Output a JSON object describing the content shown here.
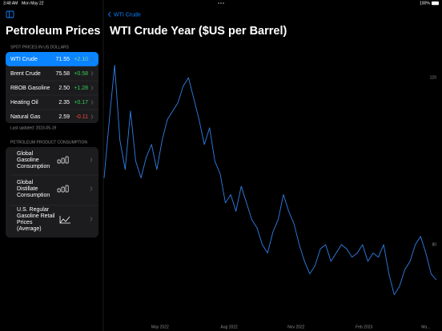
{
  "status_bar": {
    "time": "3:48 AM",
    "date": "Mon May 22",
    "battery": "100%"
  },
  "sidebar": {
    "title": "Petroleum Prices",
    "spot_header": "SPOT PRICES IN US DOLLARS",
    "spot_rows": [
      {
        "name": "WTI Crude",
        "price": "71.55",
        "change": "+2.10"
      },
      {
        "name": "Brent Crude",
        "price": "75.58",
        "change": "+0.58"
      },
      {
        "name": "RBOB Gasoline",
        "price": "2.50",
        "change": "+1.28"
      },
      {
        "name": "Heating Oil",
        "price": "2.35",
        "change": "+0.17"
      },
      {
        "name": "Natural Gas",
        "price": "2.59",
        "change": "-0.11"
      }
    ],
    "last_updated": "Last updated: 2023-05-19",
    "consumption_header": "PETROLEUM PRODUCT CONSUMPTION",
    "consumption_rows": [
      [
        "Global",
        "Gasoline",
        "Consumption"
      ],
      [
        "Global",
        "Distillate",
        "Consumption"
      ],
      [
        "U.S. Regular",
        "Gasoline Retail",
        "Prices",
        "(Average)"
      ]
    ]
  },
  "detail": {
    "back": "WTI Crude",
    "title": "WTI Crude Year ($US per Barrel)",
    "chart": {
      "type": "line",
      "color": "#2f80e8",
      "x": [
        0,
        1,
        2,
        3,
        4,
        5,
        6,
        7,
        8,
        9,
        10,
        11,
        12,
        13,
        14,
        15,
        16,
        17,
        18,
        19,
        20,
        21,
        22,
        23,
        24,
        25,
        26,
        27,
        28,
        29,
        30,
        31,
        32,
        33,
        34,
        35,
        36,
        37,
        38,
        39,
        40,
        41,
        42,
        43,
        44,
        45,
        46,
        47,
        48,
        49,
        50,
        51,
        52,
        53,
        54,
        55,
        56,
        57,
        58,
        59,
        60,
        61,
        62,
        63
      ],
      "values": [
        96,
        110,
        123,
        105,
        98,
        112,
        100,
        96,
        101,
        104,
        98,
        105,
        110,
        112,
        114,
        118,
        120,
        115,
        110,
        104,
        108,
        100,
        97,
        90,
        92,
        88,
        94,
        90,
        86,
        84,
        80,
        78,
        83,
        86,
        92,
        88,
        85,
        80,
        76,
        73,
        75,
        79,
        80,
        76,
        78,
        80,
        79,
        77,
        78,
        80,
        76,
        78,
        77,
        80,
        73,
        68,
        70,
        74,
        76,
        80,
        82,
        78,
        73,
        71.55
      ],
      "xlim": [
        0,
        63
      ],
      "ylim": [
        62,
        130
      ],
      "xticks": [
        {
          "value": 10.6,
          "label": "May 2022"
        },
        {
          "value": 23.7,
          "label": "Aug 2022"
        },
        {
          "value": 36.4,
          "label": "Nov 2022"
        },
        {
          "value": 49.3,
          "label": "Feb 2023"
        },
        {
          "value": 61,
          "label": "Ma..."
        }
      ],
      "yticks": [
        80,
        120
      ]
    }
  }
}
